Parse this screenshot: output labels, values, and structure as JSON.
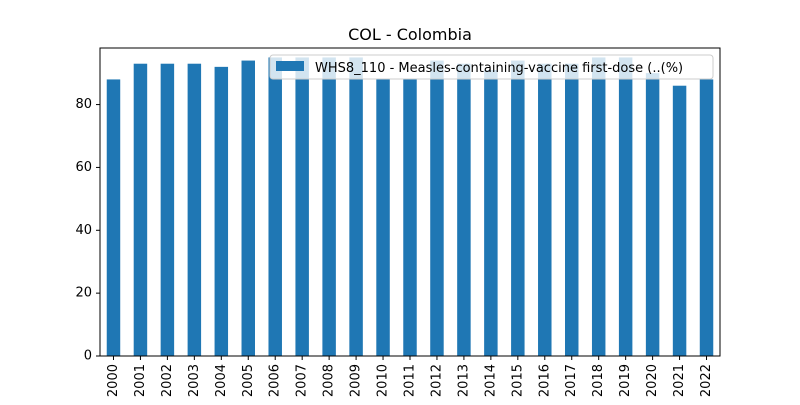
{
  "chart_data": {
    "type": "bar",
    "title": "COL - Colombia",
    "xlabel": "",
    "ylabel": "",
    "categories": [
      "2000",
      "2001",
      "2002",
      "2003",
      "2004",
      "2005",
      "2006",
      "2007",
      "2008",
      "2009",
      "2010",
      "2011",
      "2012",
      "2013",
      "2014",
      "2015",
      "2016",
      "2017",
      "2018",
      "2019",
      "2020",
      "2021",
      "2022"
    ],
    "series": [
      {
        "name": "WHS8_110 - Measles-containing-vaccine first-dose (..(%)",
        "values": [
          88,
          93,
          93,
          93,
          92,
          94,
          95,
          95,
          95,
          95,
          88,
          88,
          94,
          93,
          91,
          94,
          93,
          93,
          95,
          95,
          90,
          86,
          88
        ],
        "color": "#1f77b4"
      }
    ],
    "ylim": [
      0,
      98
    ],
    "yticks": [
      0,
      20,
      40,
      60,
      80
    ],
    "grid": false,
    "legend_position": "top-right"
  }
}
